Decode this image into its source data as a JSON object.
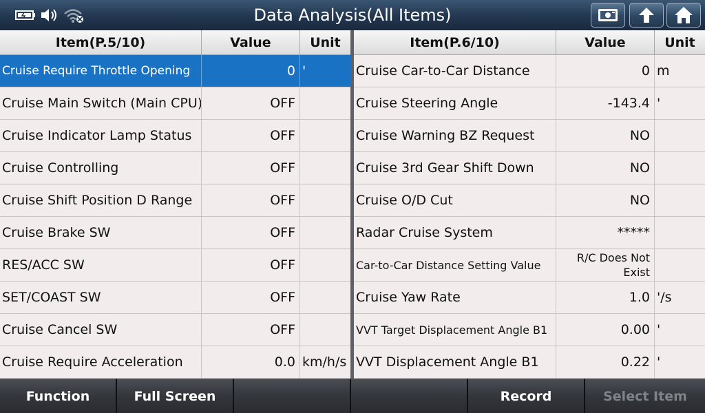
{
  "header": {
    "title": "Data Analysis(All Items)",
    "status_icons": [
      "battery-icon",
      "volume-icon",
      "wifi-disabled-icon"
    ],
    "buttons": [
      "screenshot-icon",
      "back-icon",
      "home-icon"
    ]
  },
  "left_table": {
    "headers": {
      "item": "Item(P.5/10)",
      "value": "Value",
      "unit": "Unit"
    },
    "rows": [
      {
        "item": "Cruise Require Throttle Opening",
        "value": "0",
        "unit": "'"
      },
      {
        "item": "Cruise Main Switch (Main CPU)",
        "value": "OFF",
        "unit": ""
      },
      {
        "item": "Cruise Indicator Lamp Status",
        "value": "OFF",
        "unit": ""
      },
      {
        "item": "Cruise Controlling",
        "value": "OFF",
        "unit": ""
      },
      {
        "item": "Cruise Shift Position D Range",
        "value": "OFF",
        "unit": ""
      },
      {
        "item": "Cruise Brake SW",
        "value": "OFF",
        "unit": ""
      },
      {
        "item": "RES/ACC SW",
        "value": "OFF",
        "unit": ""
      },
      {
        "item": "SET/COAST SW",
        "value": "OFF",
        "unit": ""
      },
      {
        "item": "Cruise Cancel SW",
        "value": "OFF",
        "unit": ""
      },
      {
        "item": "Cruise Require Acceleration",
        "value": "0.0",
        "unit": "km/h/s"
      }
    ]
  },
  "right_table": {
    "headers": {
      "item": "Item(P.6/10)",
      "value": "Value",
      "unit": "Unit"
    },
    "rows": [
      {
        "item": "Cruise Car-to-Car Distance",
        "value": "0",
        "unit": "m"
      },
      {
        "item": "Cruise Steering Angle",
        "value": "-143.4",
        "unit": "'"
      },
      {
        "item": "Cruise Warning BZ Request",
        "value": "NO",
        "unit": ""
      },
      {
        "item": "Cruise 3rd Gear Shift Down",
        "value": "NO",
        "unit": ""
      },
      {
        "item": "Cruise O/D Cut",
        "value": "NO",
        "unit": ""
      },
      {
        "item": "Radar Cruise System",
        "value": "*****",
        "unit": ""
      },
      {
        "item": "Car-to-Car Distance Setting Value",
        "value_line1": "R/C Does Not",
        "value_line2": "Exist",
        "unit": ""
      },
      {
        "item": "Cruise Yaw Rate",
        "value": "1.0",
        "unit": "'/s"
      },
      {
        "item": "VVT Target Displacement Angle B1",
        "value": "0.00",
        "unit": "'"
      },
      {
        "item": "VVT Displacement Angle B1",
        "value": "0.22",
        "unit": "'"
      }
    ]
  },
  "footer": {
    "function": "Function",
    "full_screen": "Full Screen",
    "empty1": "",
    "empty2": "",
    "record": "Record",
    "select_item": "Select Item"
  },
  "colors": {
    "selected_row": "#1a72c4",
    "header_bar": "#22364f",
    "row_bg": "#f2edec"
  }
}
